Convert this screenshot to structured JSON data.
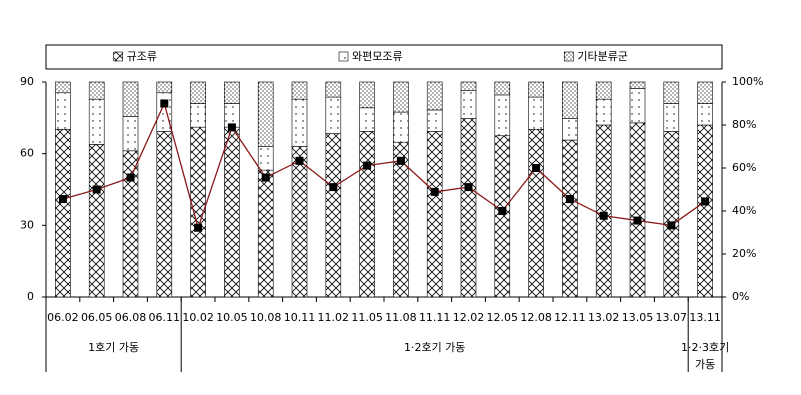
{
  "chart_data": {
    "type": "combo",
    "categories": [
      "06.02",
      "06.05",
      "06.08",
      "06.11",
      "10.02",
      "10.05",
      "10.08",
      "10.11",
      "11.02",
      "11.05",
      "11.08",
      "11.11",
      "12.02",
      "12.05",
      "12.08",
      "12.11",
      "13.02",
      "13.05",
      "13.07",
      "13.11"
    ],
    "series": [
      {
        "name": "규조류",
        "pattern": "cross",
        "axis": "y2",
        "values": [
          78,
          71,
          68,
          77,
          79,
          79,
          59,
          70,
          76,
          77,
          72,
          77,
          83,
          75,
          78,
          73,
          80,
          81,
          77,
          80
        ]
      },
      {
        "name": "와편모조류",
        "pattern": "sparse-dots",
        "axis": "y2",
        "values": [
          17,
          21,
          16,
          18,
          11,
          11,
          11,
          22,
          17,
          11,
          14,
          10,
          13,
          19,
          15,
          10,
          12,
          16,
          13,
          10
        ]
      },
      {
        "name": "기타분류군",
        "pattern": "dense-dots",
        "axis": "y2",
        "values": [
          5,
          8,
          16,
          5,
          10,
          10,
          30,
          8,
          7,
          12,
          14,
          13,
          4,
          6,
          7,
          17,
          8,
          3,
          10,
          10
        ]
      },
      {
        "type": "line",
        "color": "#8b1a1a",
        "marker_color": "#000000",
        "axis": "y",
        "values": [
          41,
          45,
          50,
          81,
          29,
          71,
          50,
          57,
          46,
          55,
          57,
          44,
          46,
          36,
          54,
          41,
          34,
          32,
          30,
          40
        ]
      }
    ],
    "ylim": [
      0,
      90
    ],
    "yticks": [
      0,
      30,
      60,
      90
    ],
    "y2lim": [
      0,
      100
    ],
    "y2ticks": [
      {
        "value": 0,
        "label": "0%"
      },
      {
        "value": 20,
        "label": "20%"
      },
      {
        "value": 40,
        "label": "40%"
      },
      {
        "value": 60,
        "label": "60%"
      },
      {
        "value": 80,
        "label": "80%"
      },
      {
        "value": 100,
        "label": "100%"
      }
    ],
    "groups": [
      {
        "label_lines": [
          "1호기 가동"
        ],
        "start": "06.02",
        "end": "06.11"
      },
      {
        "label_lines": [
          "1·2호기 가동"
        ],
        "start": "10.02",
        "end": "13.07"
      },
      {
        "label_lines": [
          "1·2·3호기",
          "가동"
        ],
        "start": "13.11",
        "end": "13.11"
      }
    ]
  }
}
